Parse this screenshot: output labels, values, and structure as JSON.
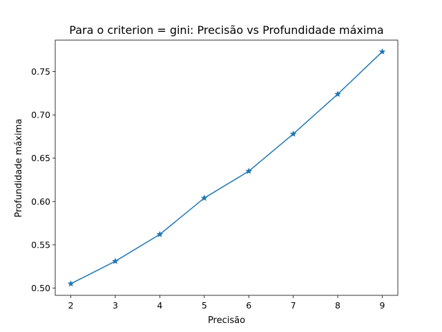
{
  "chart_data": {
    "type": "line",
    "title": "Para o criterion = gini: Precisão vs Profundidade máxima",
    "xlabel": "Precisão",
    "ylabel": "Profundidade máxima",
    "x": [
      2,
      3,
      4,
      5,
      6,
      7,
      8,
      9
    ],
    "series": [
      {
        "values": [
          0.505,
          0.531,
          0.562,
          0.604,
          0.635,
          0.678,
          0.724,
          0.773
        ],
        "color": "#1f77b4",
        "marker": "star"
      }
    ],
    "xticks": [
      2,
      3,
      4,
      5,
      6,
      7,
      8,
      9
    ],
    "yticks": [
      0.5,
      0.55,
      0.6,
      0.65,
      0.7,
      0.75
    ],
    "xlim": [
      1.65,
      9.35
    ],
    "ylim": [
      0.4916,
      0.7864
    ],
    "grid": false,
    "legend": "none"
  }
}
